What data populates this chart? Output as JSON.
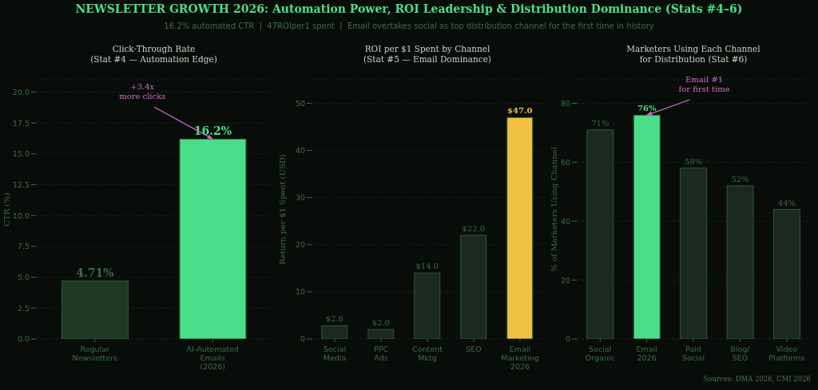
{
  "chart_data": [
    {
      "type": "other",
      "title": "NEWSLETTER GROWTH 2026: Automation Power, ROI Leadership & Distribution Dominance (Stats #4–6)",
      "subtitle": "16.2% automated CTR  |  47ROIper1 spent  |  Email overtakes social as top distribution channel for the first time in history"
    },
    {
      "type": "bar",
      "title": "Click-Through Rate\n(Stat #4 — Automation Edge)",
      "ylabel": "CTR (%)",
      "categories": [
        "Regular\nNewsletters",
        "AI-Automated\nEmails\n(2026)"
      ],
      "values": [
        4.71,
        16.2
      ],
      "colors": [
        "#1e3a25",
        "#4ade8a"
      ],
      "value_labels": [
        "4.71%",
        "16.2%"
      ],
      "ylim": [
        0,
        21
      ],
      "yticks": [
        {
          "value": 0,
          "label": "0.0"
        },
        {
          "value": 2.5,
          "label": "2.5"
        },
        {
          "value": 5,
          "label": "5.0"
        },
        {
          "value": 7.5,
          "label": "7.5"
        },
        {
          "value": 10,
          "label": "10.0"
        },
        {
          "value": 12.5,
          "label": "12.5"
        },
        {
          "value": 15,
          "label": "15.0"
        },
        {
          "value": 17.5,
          "label": "17.5"
        },
        {
          "value": 20,
          "label": "20.0"
        }
      ],
      "grid": "y",
      "annotations": [
        {
          "text": "+3.4x\nmore clicks",
          "x": "AI-Automated\nEmails\n(2026)",
          "y": 16.2
        }
      ]
    },
    {
      "type": "bar",
      "title": "ROI per $1 Spent by Channel\n(Stat #5 — Email Dominance)",
      "ylabel": "Return per $1 Spent (USD)",
      "categories": [
        "Social\nMedia",
        "PPC\nAds",
        "Content\nMktg",
        "SEO",
        "Email\nMarketing\n2026"
      ],
      "values": [
        2.8,
        2.0,
        14.0,
        22.0,
        47.0
      ],
      "colors": [
        "#1b291e",
        "#1b291e",
        "#1b291e",
        "#1b291e",
        "#f0c040"
      ],
      "value_labels": [
        "$2.8",
        "$2.0",
        "$14.0",
        "$22.0",
        "$47.0"
      ],
      "ylim": [
        0,
        55
      ],
      "yticks": [
        0,
        10,
        20,
        30,
        40,
        50
      ],
      "grid": "y"
    },
    {
      "type": "bar",
      "title": "Marketers Using Each Channel\nfor Distribution (Stat #6)",
      "ylabel": "% of Marketers Using Channel",
      "categories": [
        "Social\nOrganic",
        "Email\n2026",
        "Paid\nSocial",
        "Blog/\nSEO",
        "Video\nPlatforms"
      ],
      "values": [
        71,
        76,
        58,
        52,
        44
      ],
      "colors": [
        "#1b291e",
        "#4ade8a",
        "#1b291e",
        "#1b291e",
        "#1b291e"
      ],
      "value_labels": [
        "71%",
        "76%",
        "58%",
        "52%",
        "44%"
      ],
      "ylim": [
        0,
        88
      ],
      "yticks": [
        0,
        20,
        40,
        60,
        80
      ],
      "grid": "y",
      "annotations": [
        {
          "text": "Email #1\nfor first time",
          "x": "Email\n2026",
          "y": 76
        },
        "Sources: DMA 2026, CMI 2026"
      ]
    }
  ]
}
